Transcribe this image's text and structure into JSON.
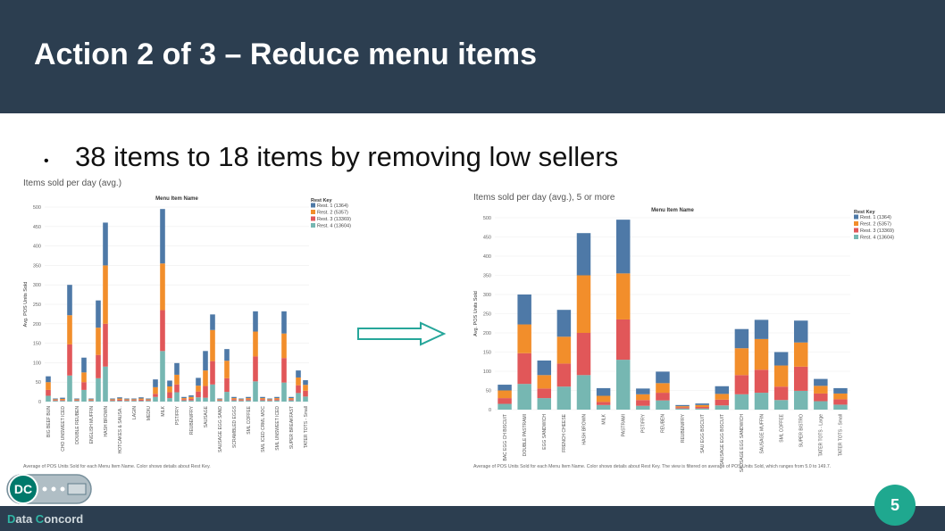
{
  "slide": {
    "title": "Action 2 of 3 – Reduce menu items",
    "bullet": "38 items to 18 items by removing low sellers",
    "page_number": "5",
    "brand_part1": "D",
    "brand_part2": "ata ",
    "brand_part3": "C",
    "brand_part4": "oncord",
    "logo_text": "DC"
  },
  "colors": {
    "header": "#2c3e50",
    "rest1": "#4e79a7",
    "rest2": "#f28e2b",
    "rest3": "#e15759",
    "rest4": "#76b7b2",
    "accent": "#1fa88f"
  },
  "chart_data": [
    {
      "type": "bar",
      "stacked": true,
      "title": "Items sold per day (avg.)",
      "header": "Menu Item Name",
      "ylabel": "Avg. POS Units Sold",
      "ylim": [
        0,
        500
      ],
      "yticks": [
        0,
        50,
        100,
        150,
        200,
        250,
        300,
        350,
        400,
        450,
        500
      ],
      "legend_title": "Rest Key",
      "legend_position": "top-right",
      "categories": [
        "BIG BEEF BUN",
        "",
        "CHO UNSWEET ICED",
        "",
        "DOUBLE REUBEN",
        "",
        "ENGLISH MUFFIN",
        "",
        "HASH BROWN",
        "",
        "HOTCAKES & SAUSA..",
        "",
        "LAGIN",
        "",
        "MEDIU",
        "",
        "MILK",
        "",
        "PST/FRY",
        "",
        "REUBEN/FRY",
        "",
        "SAUSAGE",
        "",
        "SAUSAGE EGG SAND",
        "",
        "SCRAMBLED EGGS",
        "",
        "SML COFFEE",
        "",
        "SML ICED CRML MOC",
        "",
        "SML UNSWEET ICED",
        "",
        "SUPER BREAKFAST",
        "",
        "TATER TOTS - Small"
      ],
      "series": [
        {
          "name": "Rest. 1 (1364)",
          "values": [
            15,
            2,
            3,
            78,
            2,
            38,
            2,
            70,
            110,
            2,
            3,
            2,
            2,
            3,
            2,
            20,
            140,
            15,
            30,
            3,
            4,
            20,
            50,
            40,
            2,
            30,
            3,
            2,
            3,
            52,
            3,
            2,
            3,
            57,
            3,
            18,
            12
          ]
        },
        {
          "name": "Rest. 2 (5357)",
          "values": [
            20,
            2,
            3,
            75,
            2,
            25,
            2,
            70,
            150,
            2,
            3,
            2,
            2,
            3,
            2,
            17,
            120,
            15,
            25,
            3,
            5,
            15,
            40,
            80,
            2,
            45,
            3,
            2,
            3,
            64,
            3,
            2,
            3,
            63,
            3,
            20,
            15
          ]
        },
        {
          "name": "Rest. 3 (13369)",
          "values": [
            15,
            2,
            2,
            80,
            2,
            20,
            2,
            60,
            110,
            2,
            3,
            2,
            2,
            3,
            2,
            8,
            105,
            15,
            20,
            3,
            4,
            15,
            30,
            60,
            2,
            35,
            3,
            2,
            3,
            64,
            3,
            2,
            3,
            63,
            3,
            20,
            15
          ]
        },
        {
          "name": "Rest. 4 (13604)",
          "values": [
            15,
            2,
            2,
            67,
            2,
            30,
            2,
            60,
            90,
            2,
            2,
            2,
            2,
            2,
            2,
            12,
            130,
            9,
            24,
            3,
            3,
            11,
            10,
            44,
            2,
            25,
            3,
            2,
            3,
            52,
            3,
            2,
            3,
            49,
            3,
            22,
            13
          ]
        }
      ],
      "footnote": "Average of POS Units Sold for each Menu Item Name.  Color shows details about Rest Key."
    },
    {
      "type": "bar",
      "stacked": true,
      "title": "Items sold per day (avg.), 5 or more",
      "header": "Menu Item Name",
      "ylabel": "Avg. POS Units Sold",
      "ylim": [
        0,
        500
      ],
      "yticks": [
        0,
        50,
        100,
        150,
        200,
        250,
        300,
        350,
        400,
        450,
        500
      ],
      "legend_title": "Rest Key",
      "legend_position": "top-right",
      "categories": [
        "BAC EGG CH BISCUIT",
        "DOUBLE PASTRAMI",
        "EGG SANDWICH",
        "FRENCH CHEESE",
        "HASH BROWN",
        "MILK",
        "PASTRAMI",
        "PST/FRY",
        "REUBEN",
        "REUBEN/FRY",
        "SAU EGG BISCUIT",
        "SAUSAGE EGG BISCUIT",
        "SAUSAGE EGG SANDWICH",
        "SAUSAGE MUFFIN",
        "SML COFFEE",
        "SUPER BISTRO",
        "TATER TOTS - Large",
        "TATER TOTS - Small"
      ],
      "series": [
        {
          "name": "Rest. 1 (1364)",
          "values": [
            15,
            78,
            38,
            70,
            110,
            20,
            140,
            15,
            30,
            3,
            4,
            20,
            50,
            50,
            35,
            57,
            18,
            14
          ]
        },
        {
          "name": "Rest. 2 (5357)",
          "values": [
            20,
            75,
            35,
            70,
            150,
            16,
            120,
            15,
            25,
            3,
            5,
            15,
            70,
            80,
            55,
            63,
            20,
            15
          ]
        },
        {
          "name": "Rest. 3 (13369)",
          "values": [
            15,
            80,
            25,
            60,
            110,
            8,
            105,
            15,
            20,
            3,
            4,
            15,
            50,
            60,
            35,
            63,
            20,
            14
          ]
        },
        {
          "name": "Rest. 4 (13604)",
          "values": [
            15,
            67,
            30,
            60,
            90,
            12,
            130,
            10,
            24,
            3,
            3,
            11,
            40,
            44,
            25,
            49,
            22,
            13
          ]
        }
      ],
      "footnote": "Average of POS Units Sold for each Menu Item Name.  Color shows details about Rest Key.  The view is filtered on average of POS Units Sold, which ranges from 5.0 to 149.7."
    }
  ]
}
